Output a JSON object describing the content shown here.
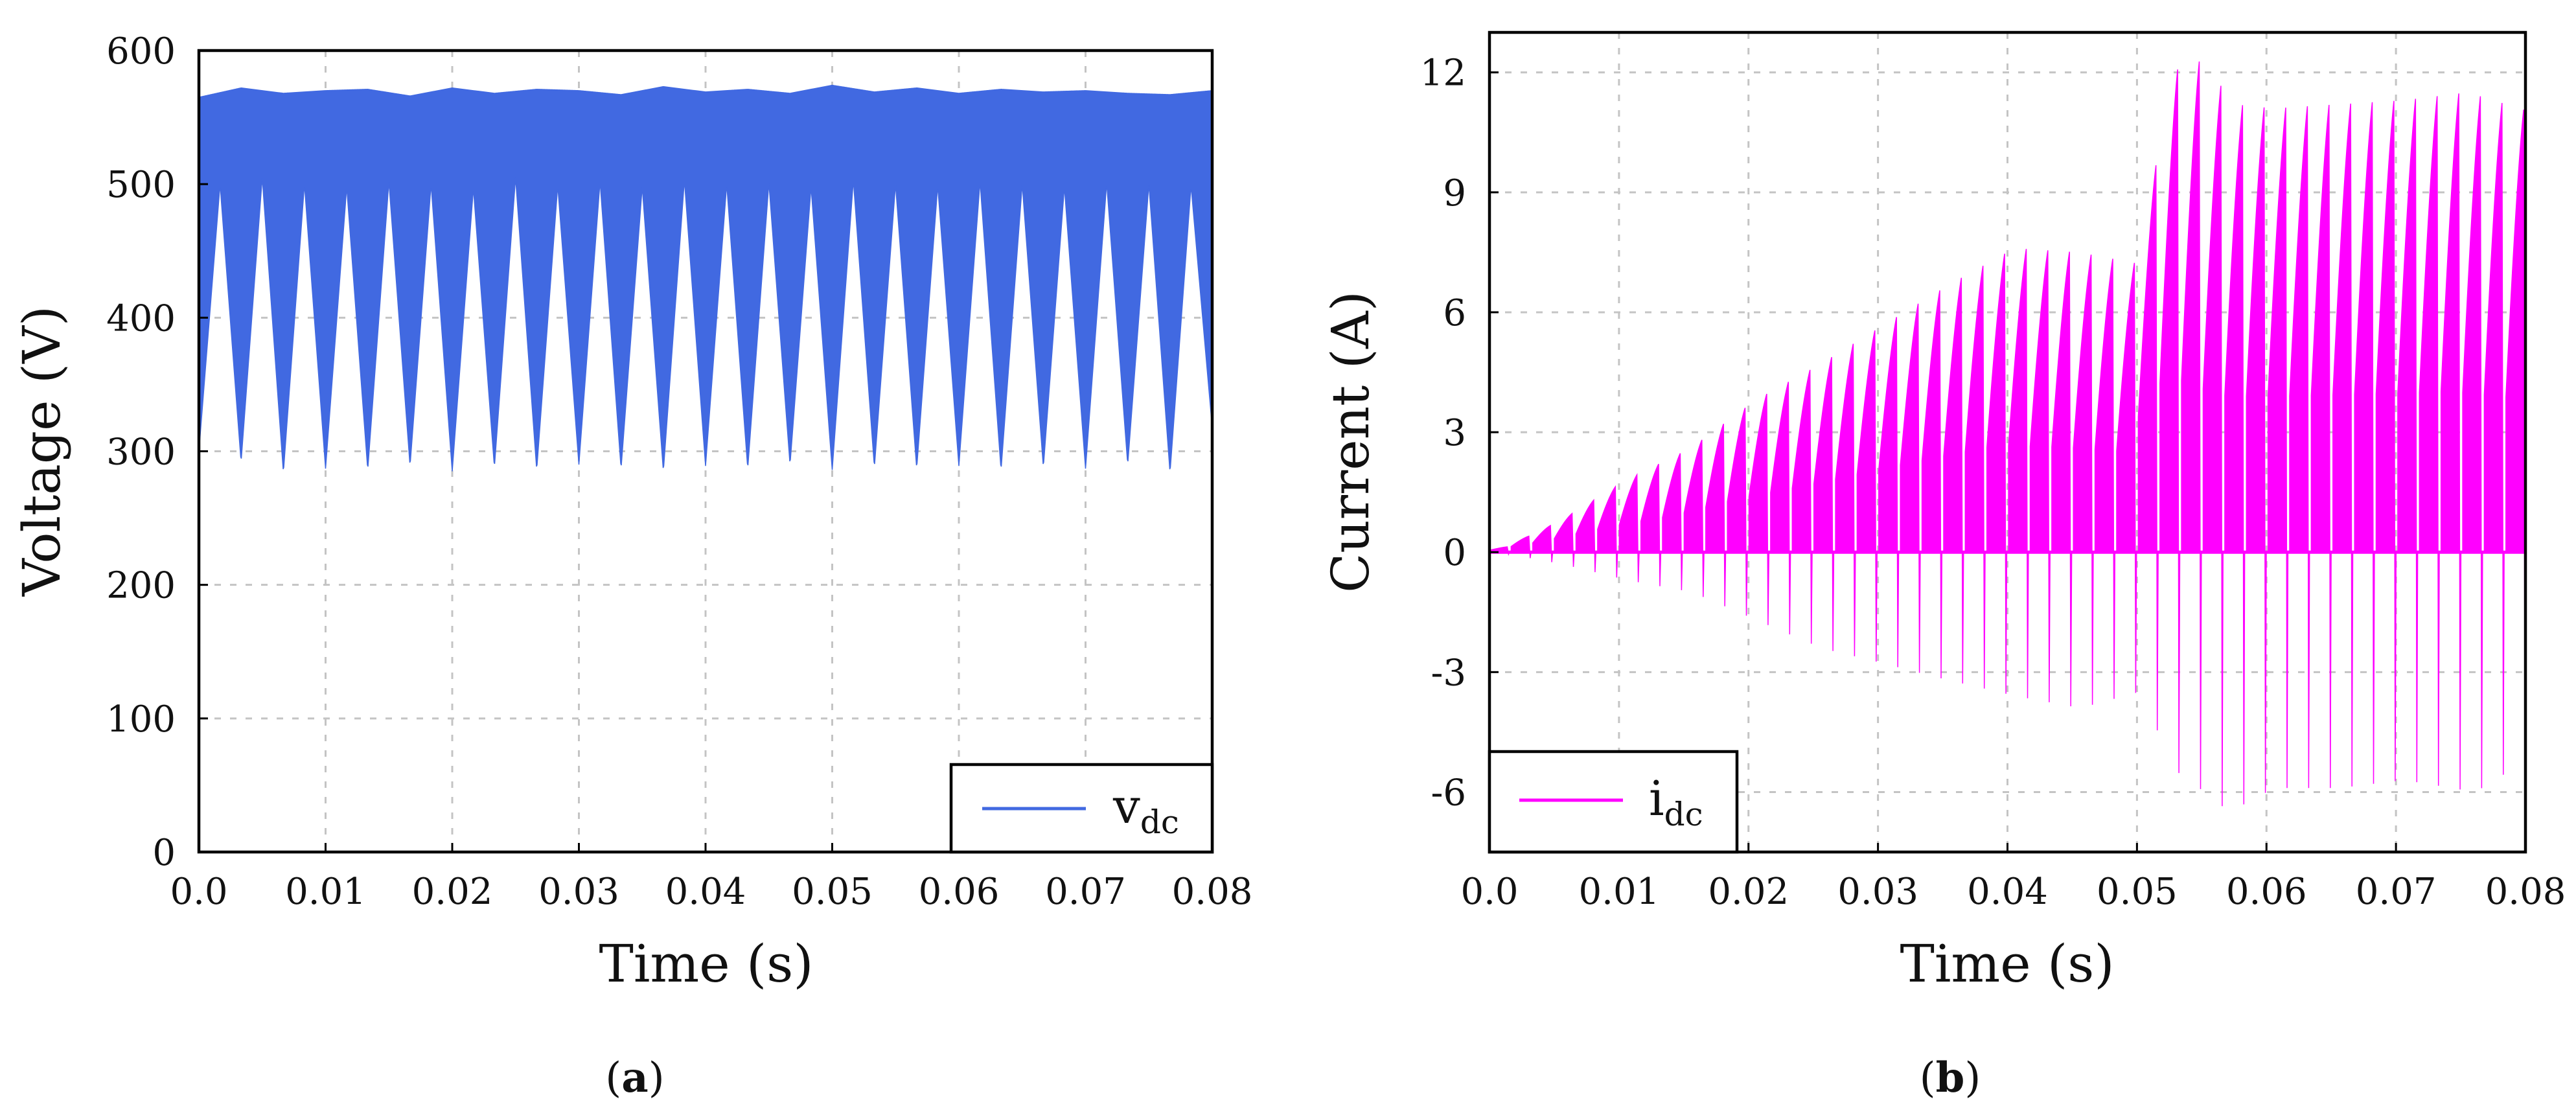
{
  "chart_data": [
    {
      "id": "a",
      "type": "line",
      "caption_letter": "a",
      "caption_open": "(",
      "caption_close": ")",
      "xlabel": "Time (s)",
      "ylabel": "Voltage (V)",
      "xlim": [
        0,
        0.08
      ],
      "ylim": [
        0,
        600
      ],
      "x_ticks": [
        0,
        0.01,
        0.02,
        0.03,
        0.04,
        0.05,
        0.06,
        0.07,
        0.08
      ],
      "x_tick_labels": [
        "0.0",
        "0.01",
        "0.02",
        "0.03",
        "0.04",
        "0.05",
        "0.06",
        "0.07",
        "0.08"
      ],
      "y_ticks": [
        0,
        100,
        200,
        300,
        400,
        500,
        600
      ],
      "y_tick_labels": [
        "0",
        "100",
        "200",
        "300",
        "400",
        "500",
        "600"
      ],
      "grid": true,
      "legend_position": "bottom-right",
      "series": [
        {
          "name": "v",
          "subscript": "dc",
          "color": "#4169E1",
          "description": "Rapidly switching DC-link voltage forming a rectified envelope between troughs near 285 V and peaks near 570 V",
          "envelope_upper": {
            "t": [
              0,
              0.00333,
              0.00667,
              0.01,
              0.01333,
              0.01667,
              0.02,
              0.02333,
              0.02667,
              0.03,
              0.03333,
              0.03667,
              0.04,
              0.04333,
              0.04667,
              0.05,
              0.05333,
              0.05667,
              0.06,
              0.06333,
              0.06667,
              0.07,
              0.07333,
              0.07667,
              0.08
            ],
            "v": [
              565,
              572,
              568,
              570,
              571,
              566,
              572,
              568,
              571,
              570,
              567,
              573,
              569,
              571,
              568,
              574,
              569,
              572,
              568,
              571,
              569,
              570,
              568,
              567,
              570
            ]
          },
          "envelope_lower": {
            "t": [
              0.00167,
              0.00333,
              0.005,
              0.00667,
              0.00833,
              0.01,
              0.01167,
              0.01333,
              0.015,
              0.01667,
              0.01833,
              0.02,
              0.02167,
              0.02333,
              0.025,
              0.02667,
              0.02833,
              0.03,
              0.03167,
              0.03333,
              0.035,
              0.03667,
              0.03833,
              0.04,
              0.04167,
              0.04333,
              0.045,
              0.04667,
              0.04833,
              0.05,
              0.05167,
              0.05333,
              0.055,
              0.05667,
              0.05833,
              0.06,
              0.06167,
              0.06333,
              0.065,
              0.06667,
              0.06833,
              0.07,
              0.07167,
              0.07333,
              0.075,
              0.07667,
              0.07833,
              0.08
            ],
            "v": [
              500,
              292,
              505,
              284,
              500,
              287,
              498,
              286,
              502,
              289,
              500,
              285,
              497,
              288,
              505,
              286,
              499,
              290,
              502,
              287,
              498,
              285,
              503,
              289,
              500,
              287,
              501,
              290,
              498,
              286,
              503,
              288,
              500,
              287,
              499,
              289,
              502,
              286,
              500,
              288,
              498,
              287,
              501,
              290,
              500,
              284,
              499,
              318
            ]
          }
        }
      ]
    },
    {
      "id": "b",
      "type": "line",
      "caption_letter": "b",
      "caption_open": "(",
      "caption_close": ")",
      "xlabel": "Time (s)",
      "ylabel": "Current (A)",
      "xlim": [
        0,
        0.08
      ],
      "ylim": [
        -7.5,
        13
      ],
      "x_ticks": [
        0,
        0.01,
        0.02,
        0.03,
        0.04,
        0.05,
        0.06,
        0.07,
        0.08
      ],
      "x_tick_labels": [
        "0.0",
        "0.01",
        "0.02",
        "0.03",
        "0.04",
        "0.05",
        "0.06",
        "0.07",
        "0.08"
      ],
      "y_ticks": [
        -6,
        -3,
        0,
        3,
        6,
        9,
        12
      ],
      "y_tick_labels": [
        "-6",
        "-3",
        "0",
        "3",
        "6",
        "9",
        "12"
      ],
      "grid": true,
      "legend_position": "bottom-left",
      "series": [
        {
          "name": "i",
          "subscript": "dc",
          "color": "#FF00FF",
          "description": "Switched DC-link current pulses with positive peaks growing from about 0 A to about 7.7 A before 0.05 s, then near 11–12.3 A afterwards; negative dips grow to about -6.5 A",
          "pulse_period": 0.00167,
          "positive_peaks": {
            "t": [
              0.005,
              0.01,
              0.015,
              0.02,
              0.025,
              0.03,
              0.035,
              0.04,
              0.045,
              0.0498,
              0.052,
              0.0545,
              0.057,
              0.06,
              0.065,
              0.07,
              0.075,
              0.08
            ],
            "v": [
              0.8,
              1.8,
              2.6,
              3.8,
              4.7,
              5.7,
              6.7,
              7.6,
              7.5,
              7.2,
              12.0,
              12.3,
              11.2,
              11.1,
              11.2,
              11.3,
              11.5,
              11.0
            ]
          },
          "negative_peaks": {
            "t": [
              0.005,
              0.01,
              0.015,
              0.02,
              0.025,
              0.03,
              0.0335,
              0.04,
              0.045,
              0.0495,
              0.0525,
              0.055,
              0.0565,
              0.06,
              0.065,
              0.07,
              0.0755,
              0.0795
            ],
            "v": [
              -0.3,
              -0.7,
              -1.0,
              -1.7,
              -2.4,
              -2.8,
              -3.1,
              -3.6,
              -3.9,
              -3.5,
              -5.5,
              -6.1,
              -6.5,
              -5.9,
              -5.9,
              -5.7,
              -6.0,
              -5.2
            ]
          }
        }
      ]
    }
  ]
}
